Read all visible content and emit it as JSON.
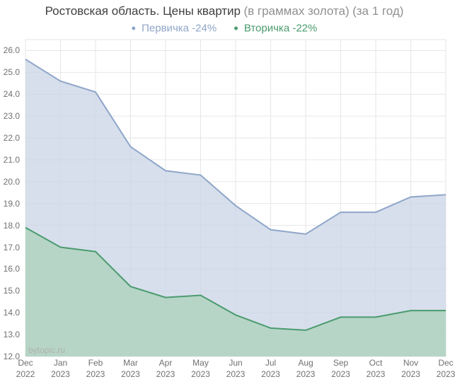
{
  "title": {
    "main": "Ростовская область. Цены квартир",
    "sub1": "(в граммах золота)",
    "sub2": "(за 1 год)",
    "title_fontsize": 17,
    "title_color_main": "#404040",
    "title_color_sub": "#909090"
  },
  "legend": {
    "items": [
      {
        "label": "Первичка -24%",
        "color": "#8fa6c9",
        "dot": "•"
      },
      {
        "label": "Вторичка -22%",
        "color": "#4a9b6e",
        "dot": "•"
      }
    ],
    "fontsize": 15
  },
  "chart": {
    "type": "area",
    "background_color": "#ffffff",
    "grid_color": "#e6e6e6",
    "border_color": "#e6e6e6",
    "plot_bg": "#ffffff",
    "ylim": [
      12.0,
      26.5
    ],
    "ytick_step": 1.0,
    "yticks": [
      "12.0",
      "13.0",
      "14.0",
      "15.0",
      "16.0",
      "17.0",
      "18.0",
      "19.0",
      "20.0",
      "21.0",
      "22.0",
      "23.0",
      "24.0",
      "25.0",
      "26.0"
    ],
    "xticks": [
      {
        "l1": "Dec",
        "l2": "2022"
      },
      {
        "l1": "Jan",
        "l2": "2023"
      },
      {
        "l1": "Feb",
        "l2": "2023"
      },
      {
        "l1": "Mar",
        "l2": "2023"
      },
      {
        "l1": "Apr",
        "l2": "2023"
      },
      {
        "l1": "May",
        "l2": "2023"
      },
      {
        "l1": "Jun",
        "l2": "2023"
      },
      {
        "l1": "Jul",
        "l2": "2023"
      },
      {
        "l1": "Aug",
        "l2": "2023"
      },
      {
        "l1": "Sep",
        "l2": "2023"
      },
      {
        "l1": "Oct",
        "l2": "2023"
      },
      {
        "l1": "Nov",
        "l2": "2023"
      },
      {
        "l1": "Dec",
        "l2": "2023"
      }
    ],
    "series": [
      {
        "name": "primary",
        "line_color": "#8fa6c9",
        "fill_color": "#c9d4e6",
        "fill_opacity": 0.75,
        "line_width": 2,
        "values": [
          25.6,
          24.6,
          24.1,
          21.6,
          20.5,
          20.3,
          18.9,
          17.8,
          17.6,
          18.6,
          18.6,
          19.3,
          19.4
        ]
      },
      {
        "name": "secondary",
        "line_color": "#4a9b6e",
        "fill_color": "#a8d0b8",
        "fill_opacity": 0.7,
        "line_width": 2,
        "values": [
          17.9,
          17.0,
          16.8,
          15.2,
          14.7,
          14.8,
          13.9,
          13.3,
          13.2,
          13.8,
          13.8,
          14.1,
          14.1
        ]
      }
    ],
    "axis_label_fontsize": 12,
    "axis_label_color": "#707070"
  },
  "attribution": {
    "text": "bytopic.ru",
    "color": "#b0b0b0",
    "fontsize": 12
  }
}
